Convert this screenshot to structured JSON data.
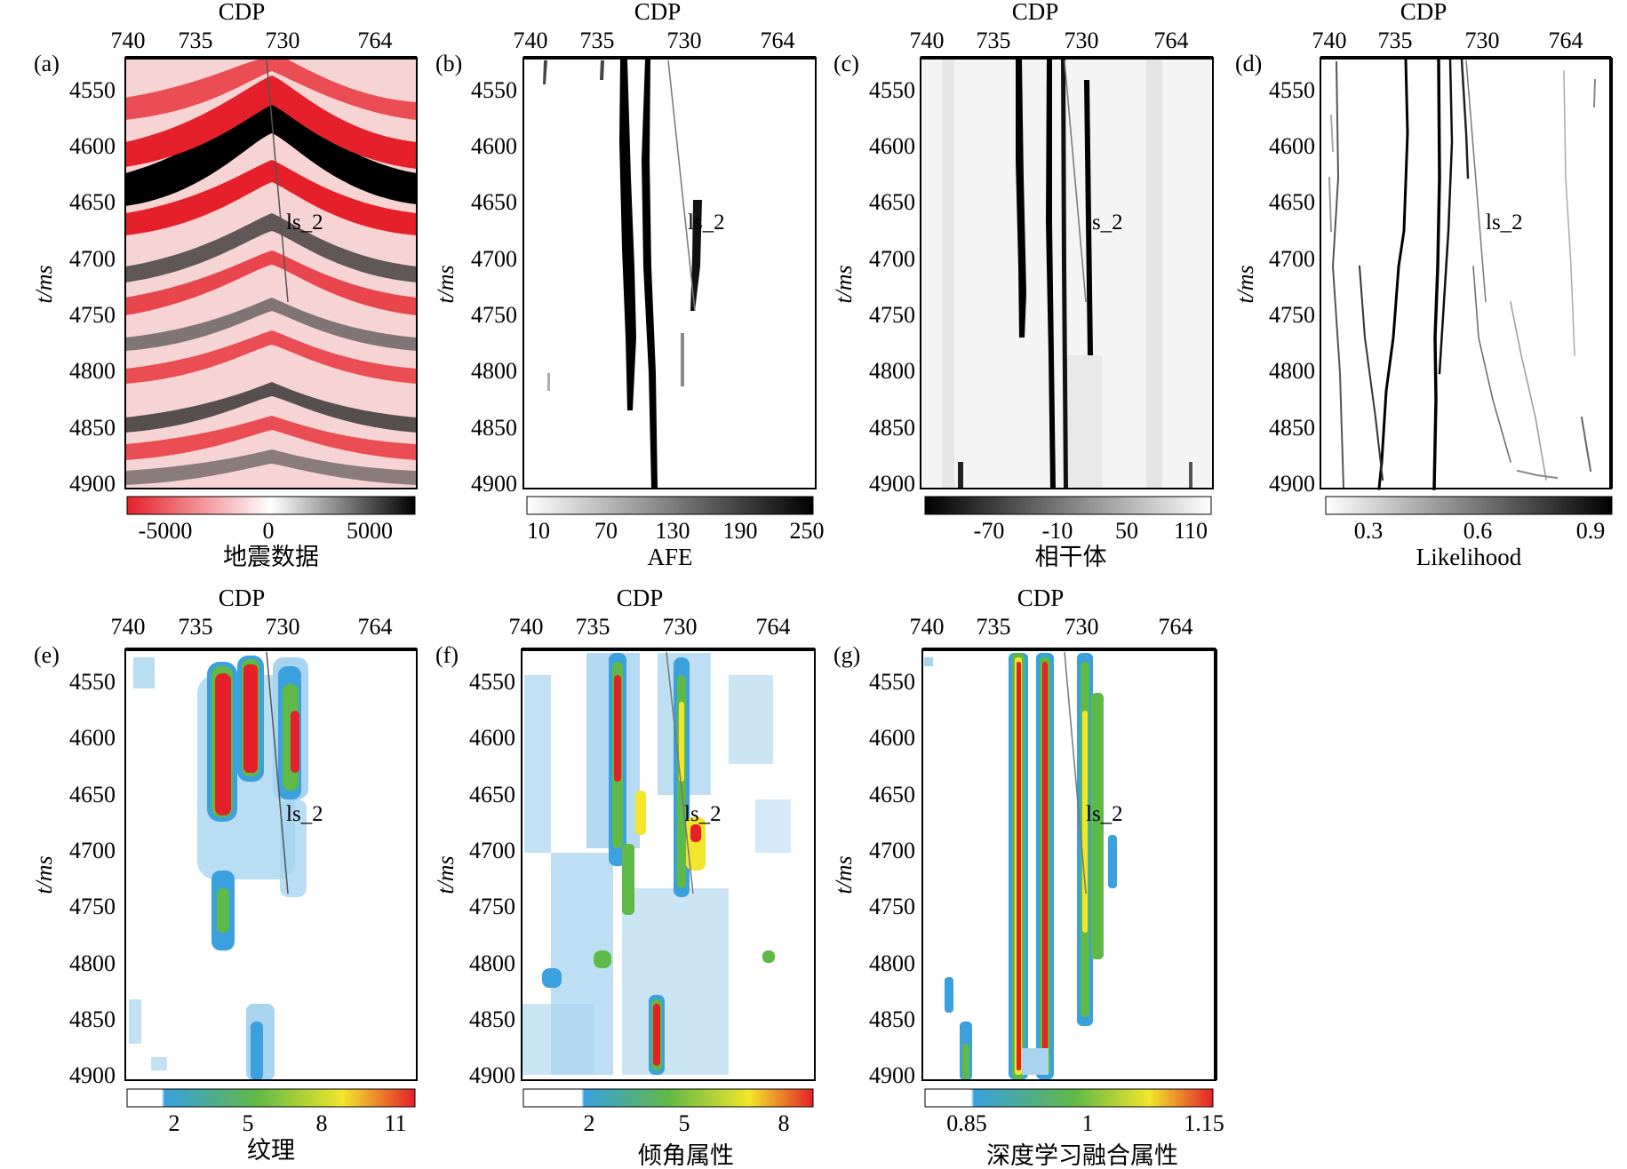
{
  "figure": {
    "x_axis_title": "CDP",
    "x_ticks": [
      "740",
      "735",
      "730",
      "764"
    ],
    "y_axis_title": "t/ms",
    "y_ticks": [
      "4550",
      "4600",
      "4650",
      "4700",
      "4750",
      "4800",
      "4850",
      "4900"
    ],
    "well_label": "ls_2"
  },
  "panels": [
    {
      "id": "a",
      "label": "(a)",
      "colorbar_label": "地震数据",
      "colorbar_ticks": [
        "-5000",
        "0",
        "5000"
      ],
      "colormap": "red-white-black"
    },
    {
      "id": "b",
      "label": "(b)",
      "colorbar_label": "AFE",
      "colorbar_ticks": [
        "10",
        "70",
        "130",
        "190",
        "250"
      ],
      "colormap": "white-black"
    },
    {
      "id": "c",
      "label": "(c)",
      "colorbar_label": "相干体",
      "colorbar_ticks": [
        "-70",
        "-10",
        "50",
        "110"
      ],
      "colormap": "black-white"
    },
    {
      "id": "d",
      "label": "(d)",
      "colorbar_label": "Likelihood",
      "colorbar_ticks": [
        "0.3",
        "0.6",
        "0.9"
      ],
      "colormap": "white-black"
    },
    {
      "id": "e",
      "label": "(e)",
      "colorbar_label": "纹理",
      "colorbar_ticks": [
        "2",
        "5",
        "8",
        "11"
      ],
      "colormap": "white-blue-green-yellow-red"
    },
    {
      "id": "f",
      "label": "(f)",
      "colorbar_label": "倾角属性",
      "colorbar_ticks": [
        "2",
        "5",
        "8"
      ],
      "colormap": "white-blue-green-yellow-red"
    },
    {
      "id": "g",
      "label": "(g)",
      "colorbar_label": "深度学习融合属性",
      "colorbar_ticks": [
        "0.85",
        "1",
        "1.15"
      ],
      "colormap": "white-blue-green-yellow-red"
    }
  ],
  "colors": {
    "red": "#e5202a",
    "blue": "#3aa0de",
    "green": "#5fb946",
    "yellow": "#f1e62b",
    "black": "#000000"
  }
}
